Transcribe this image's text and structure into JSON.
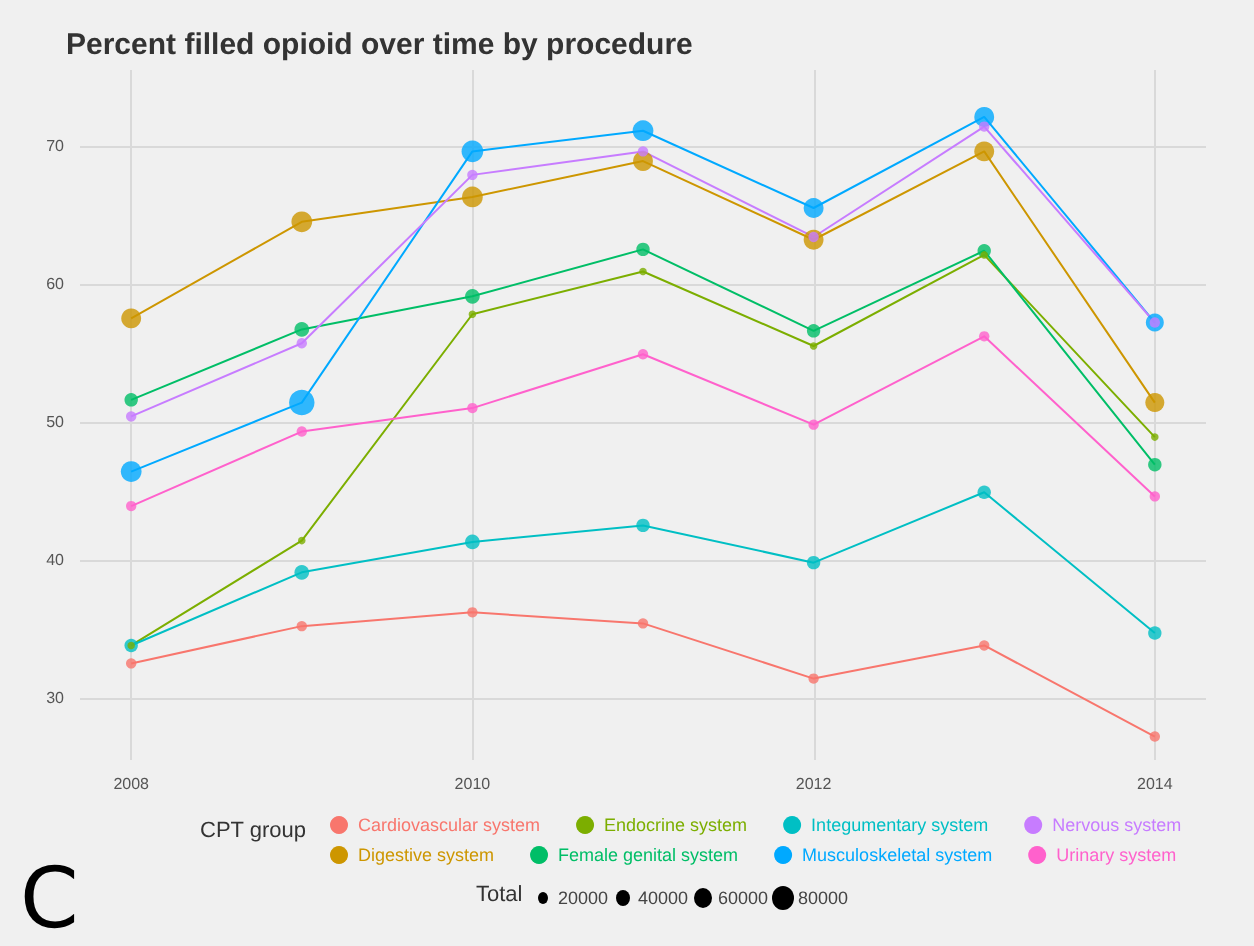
{
  "chart_data": {
    "type": "bubble",
    "title": "Percent filled opioid over time by procedure",
    "x": [
      2008,
      2009,
      2010,
      2011,
      2012,
      2013,
      2014
    ],
    "xlim": [
      2007.7,
      2014.3
    ],
    "xticks": [
      2008,
      2010,
      2012,
      2014
    ],
    "ylim": [
      25.5,
      75.5
    ],
    "yticks": [
      30,
      40,
      50,
      60,
      70
    ],
    "grid": true,
    "legend": "bottom",
    "legend_title": "CPT group",
    "marker": "circle",
    "line_style": "solid",
    "size_legend": [
      20000,
      40000,
      60000,
      80000
    ],
    "series": [
      {
        "name": "Cardiovascular system",
        "type": "line",
        "marker": "none",
        "color": "#f8766d",
        "values": [
          32.5,
          35.2,
          36.2,
          35.4,
          31.4,
          33.8,
          27.2
        ]
      },
      {
        "name": "Digestive system",
        "type": "line",
        "marker": "none",
        "color": "#cd9600",
        "values": [
          57.5,
          64.5,
          66.3,
          68.9,
          63.2,
          69.6,
          51.4
        ]
      },
      {
        "name": "Endocrine system",
        "type": "line",
        "marker": "none",
        "color": "#7cae00",
        "values": [
          33.8,
          41.4,
          57.8,
          60.9,
          55.5,
          62.1,
          48.9
        ]
      },
      {
        "name": "Female genital system",
        "type": "line",
        "marker": "none",
        "color": "#00be67",
        "values": [
          51.6,
          56.7,
          59.1,
          62.5,
          56.6,
          62.4,
          46.9
        ]
      },
      {
        "name": "Integumentary system",
        "type": "line",
        "marker": "none",
        "color": "#00bfc4",
        "values": [
          33.8,
          39.1,
          41.3,
          42.5,
          39.8,
          44.9,
          34.7
        ]
      },
      {
        "name": "Musculoskeletal system",
        "type": "line",
        "marker": "none",
        "color": "#00a9ff",
        "values": [
          46.4,
          51.4,
          69.6,
          71.1,
          65.5,
          72.1,
          57.2
        ]
      },
      {
        "name": "Nervous system",
        "type": "line",
        "marker": "none",
        "color": "#c77cff",
        "values": [
          50.4,
          55.7,
          67.9,
          69.6,
          63.4,
          71.4,
          57.2
        ]
      },
      {
        "name": "Urinary system",
        "type": "line",
        "marker": "none",
        "color": "#ff61cc",
        "values": [
          43.9,
          49.3,
          51.0,
          54.9,
          49.8,
          56.2,
          44.6
        ]
      },
      {
        "color": "#f8766d",
        "values": [
          32.5,
          35.2,
          36.2,
          35.4,
          31.4,
          33.8,
          27.2
        ],
        "sizes": [
          15000,
          15000,
          15000,
          15000,
          15000,
          15000,
          15000
        ]
      },
      {
        "color": "#cd9600",
        "values": [
          57.5,
          64.5,
          66.3,
          68.9,
          63.2,
          69.6,
          51.4
        ],
        "sizes": [
          55000,
          60000,
          60000,
          55000,
          55000,
          55000,
          50000
        ]
      },
      {
        "color": "#7cae00",
        "values": [
          33.8,
          41.4,
          57.8,
          60.9,
          55.5,
          62.1,
          48.9
        ],
        "sizes": [
          8000,
          8000,
          8000,
          8000,
          8000,
          8000,
          8000
        ]
      },
      {
        "color": "#00be67",
        "values": [
          51.6,
          56.7,
          59.1,
          62.5,
          56.6,
          62.4,
          46.9
        ],
        "sizes": [
          25000,
          30000,
          30000,
          25000,
          25000,
          25000,
          25000
        ]
      },
      {
        "color": "#00bfc4",
        "values": [
          33.8,
          39.1,
          41.3,
          42.5,
          39.8,
          44.9,
          34.7
        ],
        "sizes": [
          25000,
          30000,
          30000,
          25000,
          25000,
          25000,
          25000
        ]
      },
      {
        "color": "#00a9ff",
        "values": [
          46.4,
          51.4,
          69.6,
          71.1,
          65.5,
          72.1,
          57.2
        ],
        "sizes": [
          60000,
          90000,
          65000,
          60000,
          55000,
          55000,
          45000
        ]
      },
      {
        "color": "#c77cff",
        "values": [
          50.4,
          55.7,
          67.9,
          69.6,
          63.4,
          71.4,
          57.2
        ],
        "sizes": [
          15000,
          15000,
          15000,
          15000,
          15000,
          15000,
          15000
        ]
      },
      {
        "color": "#ff61cc",
        "values": [
          43.9,
          49.3,
          51.0,
          54.9,
          49.8,
          56.2,
          44.6
        ],
        "sizes": [
          15000,
          15000,
          15000,
          15000,
          15000,
          15000,
          15000
        ]
      }
    ],
    "annotations": [
      "C",
      "Total"
    ]
  }
}
